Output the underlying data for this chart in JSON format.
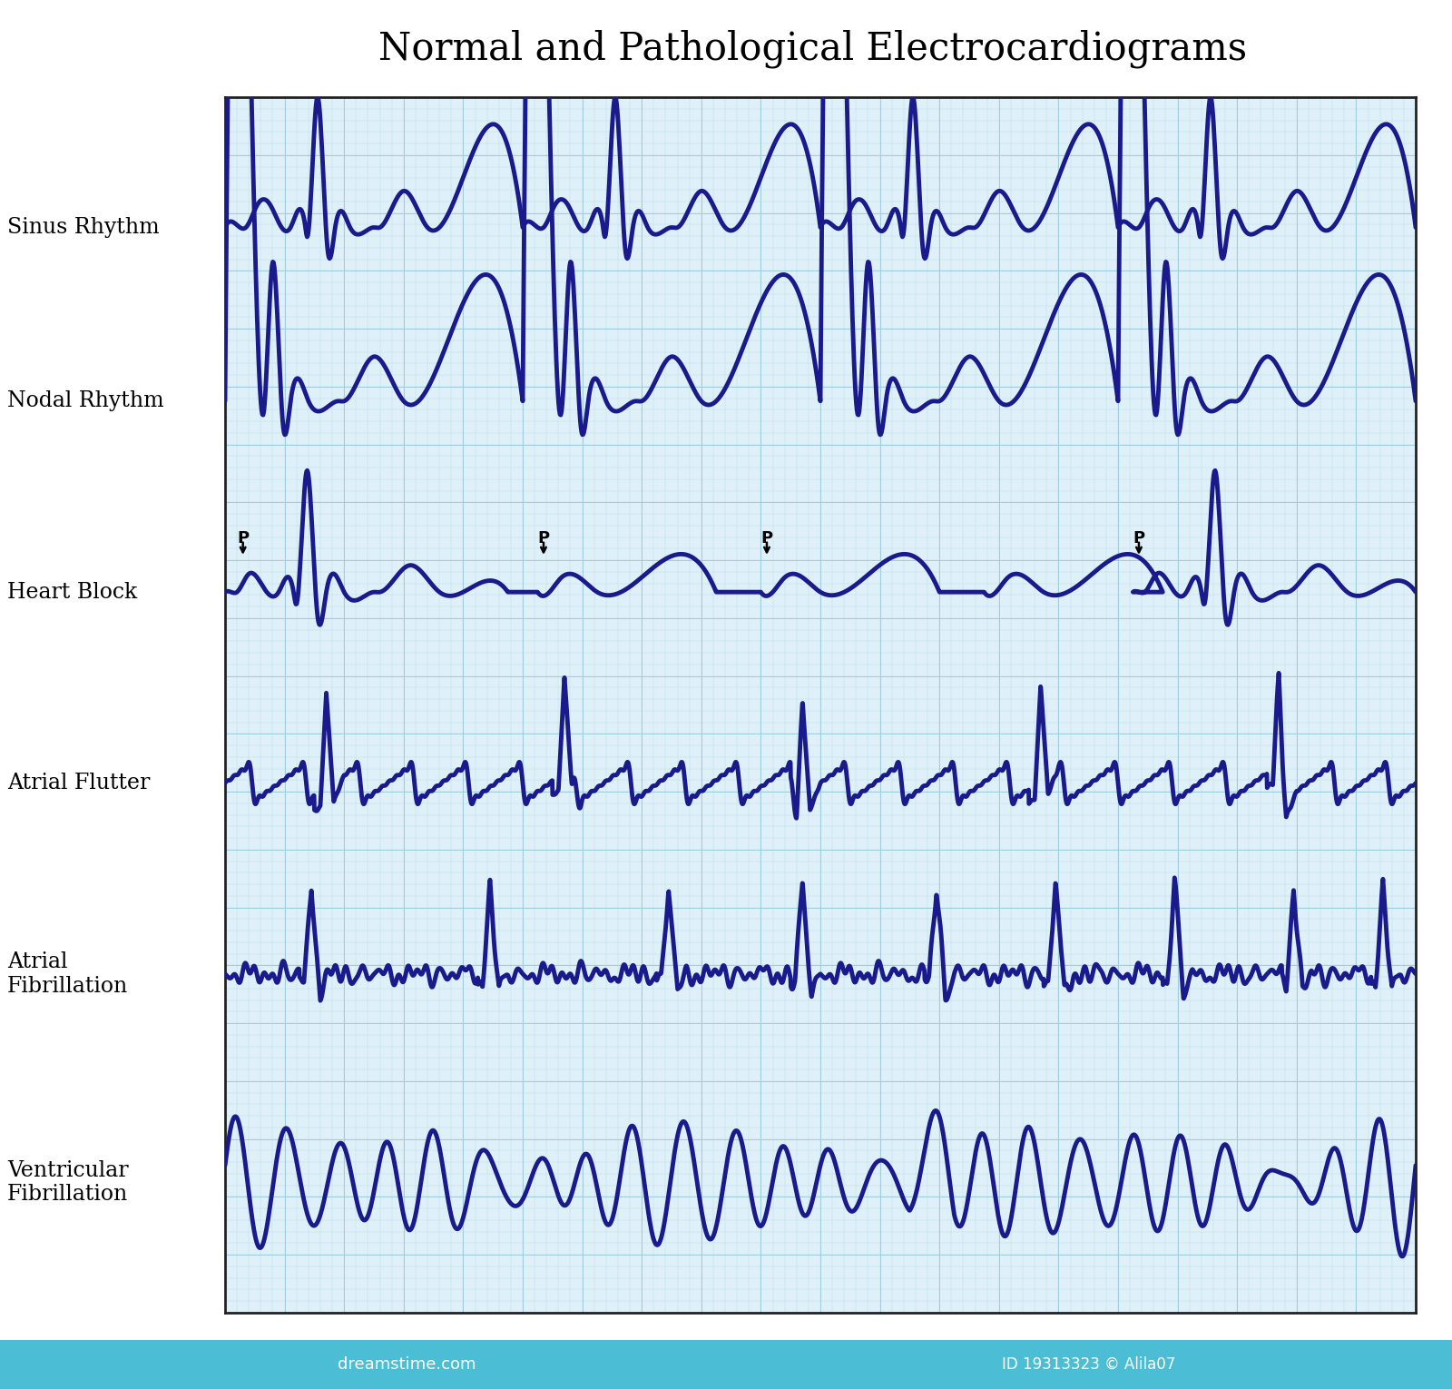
{
  "title": "Normal and Pathological Electrocardiograms",
  "title_fontsize": 30,
  "title_font": "serif",
  "background_color": "#ffffff",
  "grid_bg_color": "#dff0f8",
  "grid_color_major": "#9ecfdf",
  "grid_color_minor": "#bde0ec",
  "ecg_color": "#1a1a8c",
  "ecg_linewidth": 3.5,
  "label_fontsize": 17,
  "label_font": "serif",
  "labels": [
    "Sinus Rhythm",
    "Nodal Rhythm",
    "Heart Block",
    "Atrial Flutter",
    "Atrial\nFibrillation",
    "Ventricular\nFibrillation"
  ],
  "n_rows": 6,
  "p_wave_color": "#000000",
  "dreambar_color": "#4bbdd4",
  "dreambar_text": "dreamstime.com",
  "watermark_color": "#777777"
}
